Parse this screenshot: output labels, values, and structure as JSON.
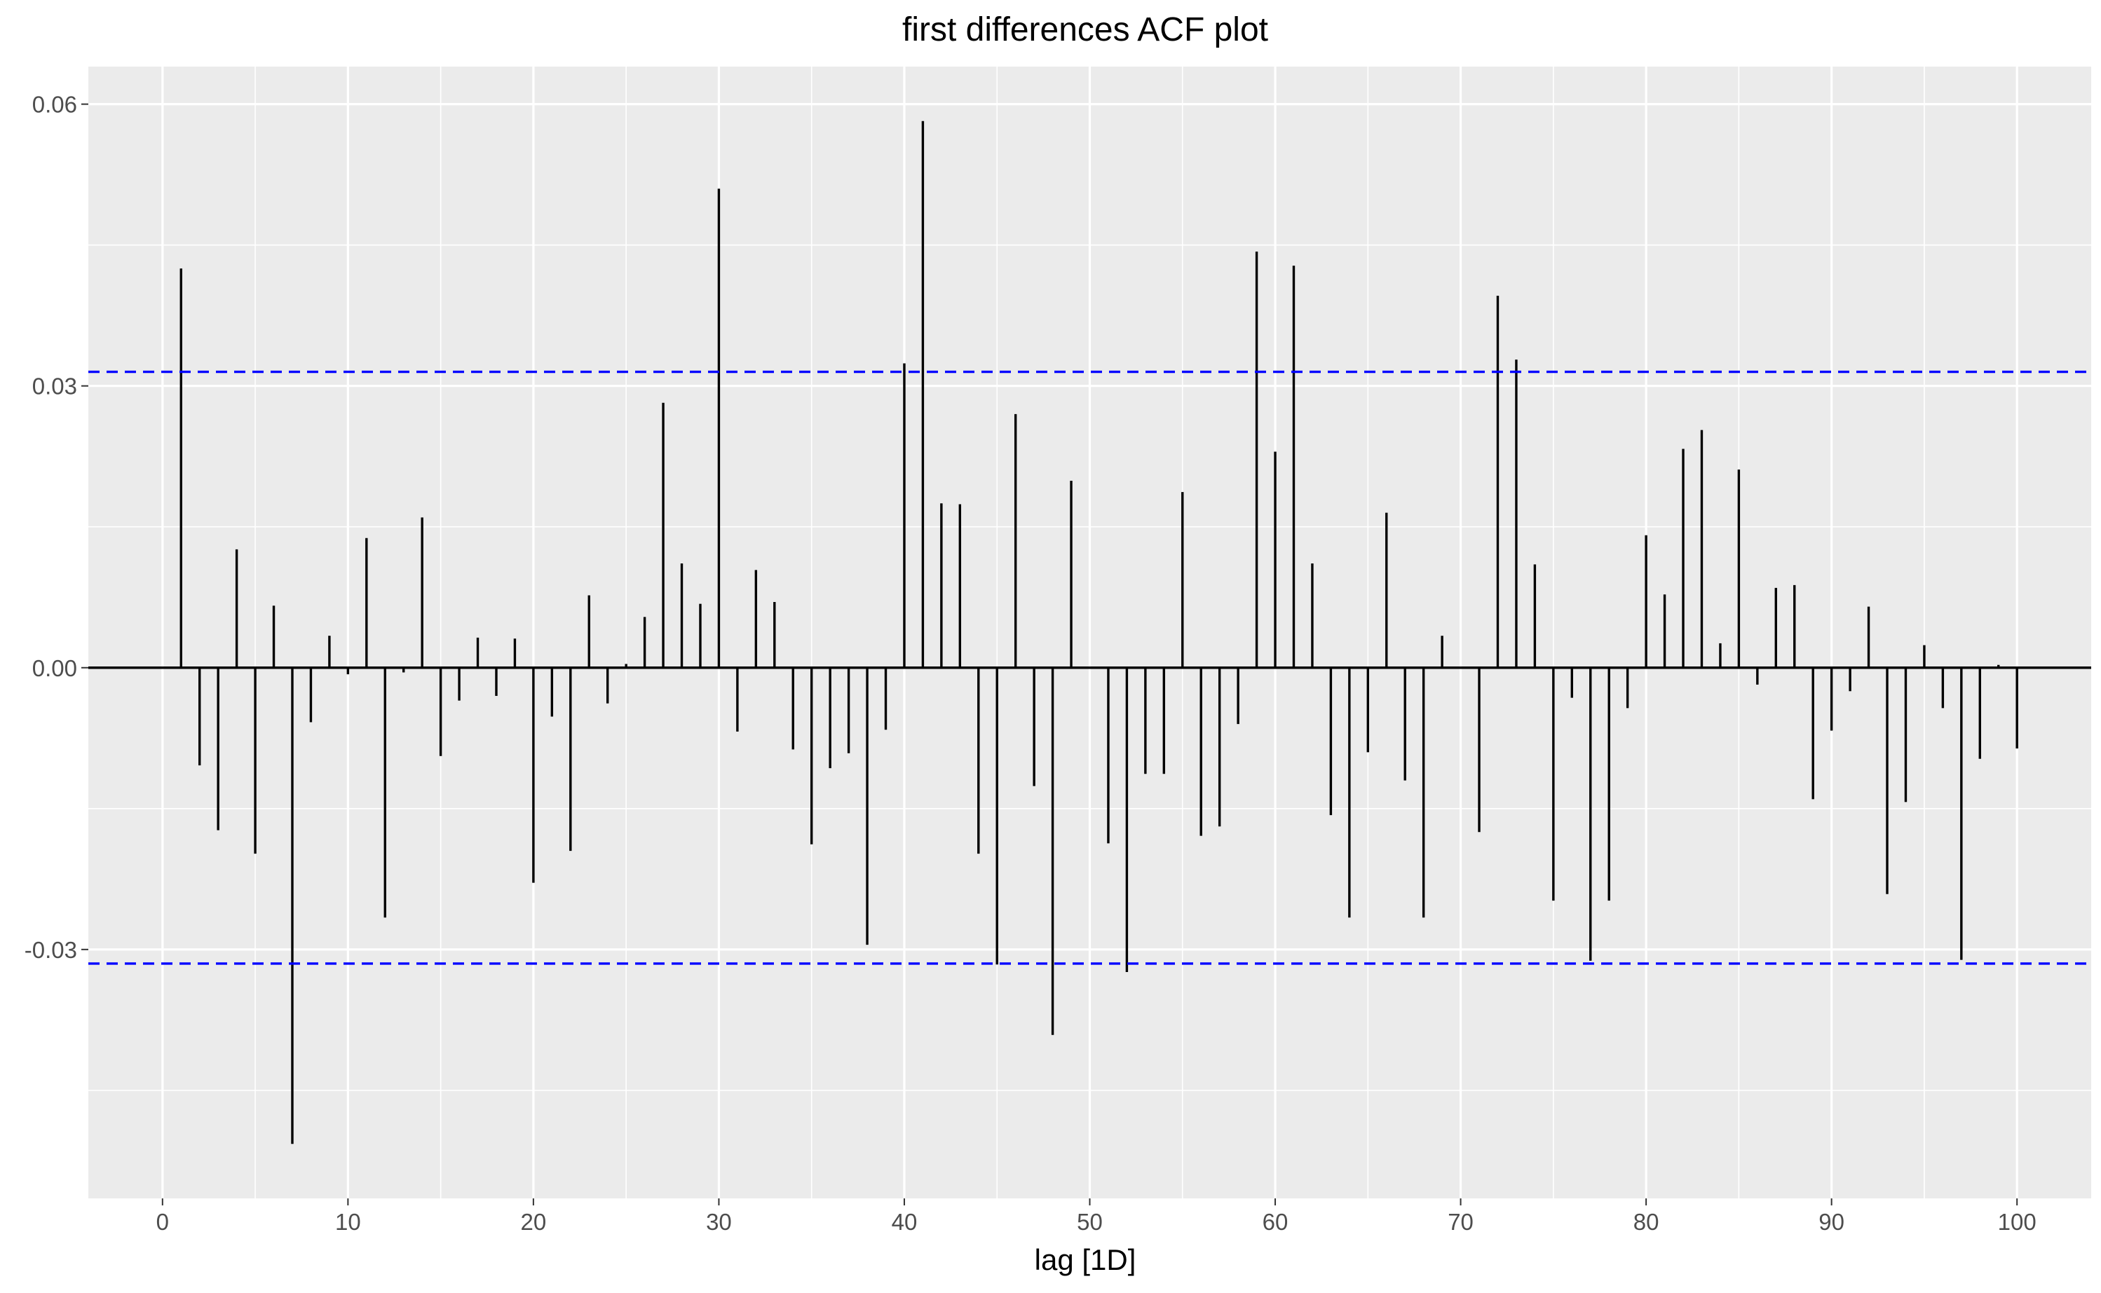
{
  "chart_data": {
    "type": "bar",
    "title": "first differences ACF plot",
    "xlabel": "lag [1D]",
    "ylabel": "",
    "x_ticks": [
      0,
      10,
      20,
      30,
      40,
      50,
      60,
      70,
      80,
      90,
      100
    ],
    "x_tick_labels": [
      "0",
      "10",
      "20",
      "30",
      "40",
      "50",
      "60",
      "70",
      "80",
      "90",
      "100"
    ],
    "y_ticks": [
      -0.03,
      0.0,
      0.03,
      0.06
    ],
    "y_tick_labels": [
      "-0.03",
      "0.00",
      "0.03",
      "0.06"
    ],
    "xlim": [
      -4,
      104
    ],
    "ylim": [
      -0.0565,
      0.064
    ],
    "grid": true,
    "background": "#EBEBEB",
    "grid_color": "#FFFFFF",
    "bar_color": "#000000",
    "ci_color": "#0000FF",
    "ci_bounds": [
      0.0315,
      -0.0315
    ],
    "x": [
      1,
      2,
      3,
      4,
      5,
      6,
      7,
      8,
      9,
      10,
      11,
      12,
      13,
      14,
      15,
      16,
      17,
      18,
      19,
      20,
      21,
      22,
      23,
      24,
      25,
      26,
      27,
      28,
      29,
      30,
      31,
      32,
      33,
      34,
      35,
      36,
      37,
      38,
      39,
      40,
      41,
      42,
      43,
      44,
      45,
      46,
      47,
      48,
      49,
      50,
      51,
      52,
      53,
      54,
      55,
      56,
      57,
      58,
      59,
      60,
      61,
      62,
      63,
      64,
      65,
      66,
      67,
      68,
      69,
      70,
      71,
      72,
      73,
      74,
      75,
      76,
      77,
      78,
      79,
      80,
      81,
      82,
      83,
      84,
      85,
      86,
      87,
      88,
      89,
      90,
      91,
      92,
      93,
      94,
      95,
      96,
      97,
      98,
      99,
      100
    ],
    "values": [
      0.0425,
      -0.0104,
      -0.0173,
      0.0126,
      -0.0198,
      0.0066,
      -0.0507,
      -0.0058,
      0.0034,
      -0.0007,
      0.0138,
      -0.0266,
      -0.0005,
      0.016,
      -0.0094,
      -0.0035,
      0.0032,
      -0.003,
      0.0031,
      -0.0229,
      -0.0052,
      -0.0195,
      0.0077,
      -0.0038,
      0.0004,
      0.0054,
      0.0282,
      0.0111,
      0.0068,
      0.051,
      -0.0068,
      0.0104,
      0.007,
      -0.0087,
      -0.0188,
      -0.0107,
      -0.0091,
      -0.0295,
      -0.0066,
      0.0324,
      0.0582,
      0.0175,
      0.0174,
      -0.0198,
      -0.0316,
      0.027,
      -0.0126,
      -0.0391,
      0.0199,
      0.0,
      -0.0187,
      -0.0324,
      -0.0113,
      -0.0113,
      0.0187,
      -0.0179,
      -0.0169,
      -0.006,
      0.0443,
      0.023,
      0.0428,
      0.0111,
      -0.0157,
      -0.0266,
      -0.009,
      0.0165,
      -0.012,
      -0.0266,
      0.0034,
      0.0,
      -0.0175,
      0.0396,
      0.0328,
      0.011,
      -0.0248,
      -0.0032,
      -0.0312,
      -0.0248,
      -0.0043,
      0.0141,
      0.0078,
      0.0233,
      0.0253,
      0.0026,
      0.0211,
      -0.0018,
      0.0085,
      0.0088,
      -0.014,
      -0.0067,
      -0.0025,
      0.0065,
      -0.0241,
      -0.0143,
      0.0024,
      -0.0043,
      -0.0311,
      -0.0097,
      0.0003,
      -0.0086
    ]
  }
}
